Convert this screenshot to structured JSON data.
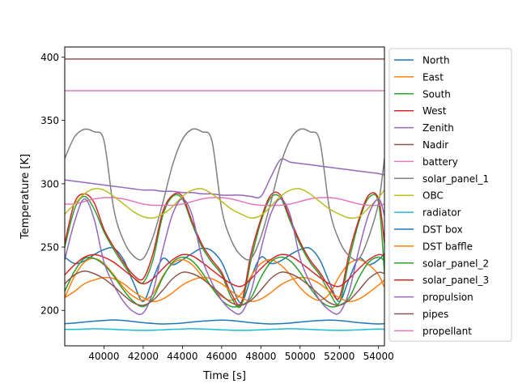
{
  "chart_data": {
    "type": "line",
    "title": "",
    "xlabel": "Time [s]",
    "ylabel": "Temperature [K]",
    "xlim": [
      38000,
      54300
    ],
    "ylim": [
      172,
      408
    ],
    "xticks": [
      40000,
      42000,
      44000,
      46000,
      48000,
      50000,
      52000,
      54000
    ],
    "yticks": [
      200,
      250,
      300,
      350,
      400
    ],
    "grid": false,
    "legend_position": "right, outside plot",
    "period": 6000,
    "x": [
      38000,
      38500,
      39000,
      39500,
      40000,
      40500,
      41000,
      41500,
      42000,
      42500,
      43000,
      43500,
      44000,
      44500,
      45000,
      45500,
      46000,
      46500,
      47000,
      47500,
      48000,
      48500,
      49000,
      49500,
      50000,
      50500,
      51000,
      51500,
      52000,
      52500,
      53000,
      53500,
      54000,
      54300
    ],
    "series": [
      {
        "name": "North",
        "color": "#1f77b4",
        "values": [
          242,
          237,
          239,
          244,
          248,
          249,
          240,
          222,
          207,
          225,
          241,
          236,
          240,
          245,
          249,
          247,
          238,
          220,
          206,
          226,
          242,
          237,
          239,
          244,
          248,
          249,
          240,
          222,
          207,
          225,
          241,
          236,
          240,
          245
        ]
      },
      {
        "name": "East",
        "color": "#ff7f0e",
        "values": [
          210,
          227,
          238,
          241,
          237,
          228,
          218,
          211,
          208,
          213,
          227,
          237,
          240,
          236,
          227,
          218,
          211,
          208,
          213,
          227,
          237,
          240,
          236,
          228,
          218,
          211,
          208,
          213,
          227,
          237,
          240,
          236,
          228,
          218
        ]
      },
      {
        "name": "South",
        "color": "#2ca02c",
        "values": [
          250,
          280,
          290,
          280,
          262,
          248,
          236,
          226,
          222,
          240,
          275,
          290,
          288,
          268,
          250,
          238,
          228,
          210,
          204,
          240,
          270,
          289,
          289,
          270,
          252,
          238,
          228,
          214,
          206,
          240,
          270,
          289,
          285,
          230
        ]
      },
      {
        "name": "West",
        "color": "#d62728",
        "values": [
          253,
          285,
          292,
          285,
          264,
          250,
          238,
          228,
          225,
          245,
          278,
          291,
          290,
          270,
          252,
          240,
          230,
          213,
          206,
          245,
          272,
          291,
          291,
          272,
          254,
          240,
          230,
          218,
          210,
          245,
          272,
          291,
          288,
          253
        ]
      },
      {
        "name": "Zenith",
        "color": "#9467bd",
        "values": [
          303,
          302,
          301,
          300,
          299,
          298,
          297,
          296,
          295,
          295,
          294,
          294,
          293,
          293,
          292,
          292,
          291,
          291,
          291,
          290,
          290,
          305,
          319,
          317,
          316,
          315,
          314,
          313,
          312,
          311,
          310,
          309,
          308,
          307
        ]
      },
      {
        "name": "Nadir",
        "color": "#8c564b",
        "values": [
          398.5,
          398.5,
          398.5,
          398.5,
          398.5,
          398.5,
          398.5,
          398.5,
          398.5,
          398.5,
          398.5,
          398.5,
          398.5,
          398.5,
          398.5,
          398.5,
          398.5,
          398.5,
          398.5,
          398.5,
          398.5,
          398.5,
          398.5,
          398.5,
          398.5,
          398.5,
          398.5,
          398.5,
          398.5,
          398.5,
          398.5,
          398.5,
          398.5,
          398.5
        ]
      },
      {
        "name": "battery",
        "color": "#e377c2",
        "values": [
          284,
          284,
          286,
          288,
          289,
          289,
          288,
          286,
          284,
          283,
          283,
          283,
          284,
          286,
          288,
          289,
          289,
          288,
          286,
          284,
          283,
          283,
          283,
          284,
          286,
          288,
          289,
          289,
          288,
          286,
          284,
          283,
          283,
          284
        ]
      },
      {
        "name": "solar_panel_1",
        "color": "#7f7f7f",
        "values": [
          320,
          337,
          343,
          341,
          334,
          280,
          255,
          243,
          241,
          258,
          285,
          315,
          335,
          343,
          341,
          334,
          280,
          255,
          243,
          241,
          258,
          285,
          315,
          335,
          343,
          341,
          334,
          280,
          255,
          243,
          241,
          258,
          285,
          320
        ]
      },
      {
        "name": "OBC",
        "color": "#bcbd22",
        "values": [
          276,
          284,
          292,
          296,
          295,
          290,
          284,
          278,
          274,
          273,
          276,
          282,
          290,
          295,
          296,
          292,
          286,
          280,
          276,
          273,
          275,
          282,
          290,
          295,
          296,
          292,
          286,
          280,
          276,
          273,
          274,
          281,
          289,
          295
        ]
      },
      {
        "name": "radiator",
        "color": "#17becf",
        "values": [
          185,
          185,
          185.2,
          185.5,
          185.3,
          185,
          184.6,
          184.3,
          184.2,
          184.3,
          184.6,
          185,
          185.3,
          185.5,
          185.3,
          185,
          184.6,
          184.3,
          184.2,
          184.3,
          184.6,
          185,
          185.3,
          185.5,
          185.3,
          185,
          184.6,
          184.3,
          184.2,
          184.3,
          184.6,
          185,
          185.3,
          185
        ]
      },
      {
        "name": "DST box",
        "color": "#1f77b4",
        "values": [
          189.5,
          190,
          190.8,
          191.5,
          192,
          192.5,
          192,
          191.2,
          190.3,
          189.7,
          189.3,
          189.5,
          190,
          190.8,
          191.5,
          192,
          192.3,
          192,
          191.2,
          190.3,
          189.7,
          189.3,
          189.5,
          190,
          190.8,
          191.5,
          192,
          192.3,
          192,
          191.2,
          190.3,
          189.7,
          189.3,
          189.5
        ]
      },
      {
        "name": "DST baffle",
        "color": "#ff7f0e",
        "values": [
          210,
          215,
          221,
          224,
          226,
          225,
          221,
          215,
          210,
          207,
          209,
          214,
          220,
          224,
          226,
          225,
          221,
          215,
          210,
          207,
          209,
          214,
          220,
          224,
          226,
          225,
          221,
          215,
          210,
          207,
          209,
          214,
          220,
          224
        ]
      },
      {
        "name": "solar_panel_2",
        "color": "#2ca02c",
        "values": [
          215,
          231,
          241,
          241,
          236,
          227,
          216,
          207,
          203,
          210,
          226,
          238,
          242,
          239,
          230,
          218,
          208,
          203,
          204,
          210,
          226,
          238,
          242,
          239,
          230,
          218,
          208,
          203,
          204,
          210,
          226,
          238,
          242,
          239
        ]
      },
      {
        "name": "solar_panel_3",
        "color": "#d62728",
        "values": [
          228,
          236,
          242,
          244,
          242,
          238,
          232,
          226,
          221,
          225,
          233,
          240,
          244,
          243,
          238,
          232,
          226,
          221,
          219,
          225,
          233,
          240,
          244,
          243,
          238,
          232,
          226,
          221,
          219,
          225,
          233,
          240,
          244,
          243
        ]
      },
      {
        "name": "propulsion",
        "color": "#9467bd",
        "values": [
          240,
          270,
          288,
          272,
          238,
          220,
          207,
          199,
          198,
          215,
          248,
          276,
          288,
          275,
          241,
          222,
          208,
          200,
          198,
          215,
          248,
          276,
          288,
          275,
          241,
          222,
          208,
          200,
          198,
          215,
          248,
          276,
          288,
          275
        ]
      },
      {
        "name": "pipes",
        "color": "#8c564b",
        "values": [
          221,
          228,
          231,
          229,
          225,
          219,
          212,
          206,
          204,
          208,
          216,
          225,
          230,
          229,
          225,
          219,
          212,
          206,
          204,
          208,
          216,
          225,
          230,
          229,
          225,
          219,
          212,
          206,
          204,
          208,
          216,
          225,
          230,
          229
        ]
      },
      {
        "name": "propellant",
        "color": "#e377c2",
        "values": [
          373.5,
          373.5,
          373.5,
          373.5,
          373.5,
          373.5,
          373.5,
          373.5,
          373.5,
          373.5,
          373.5,
          373.5,
          373.5,
          373.5,
          373.5,
          373.5,
          373.5,
          373.5,
          373.5,
          373.5,
          373.5,
          373.5,
          373.5,
          373.5,
          373.5,
          373.5,
          373.5,
          373.5,
          373.5,
          373.5,
          373.5,
          373.5,
          373.5,
          373.5
        ]
      }
    ]
  }
}
